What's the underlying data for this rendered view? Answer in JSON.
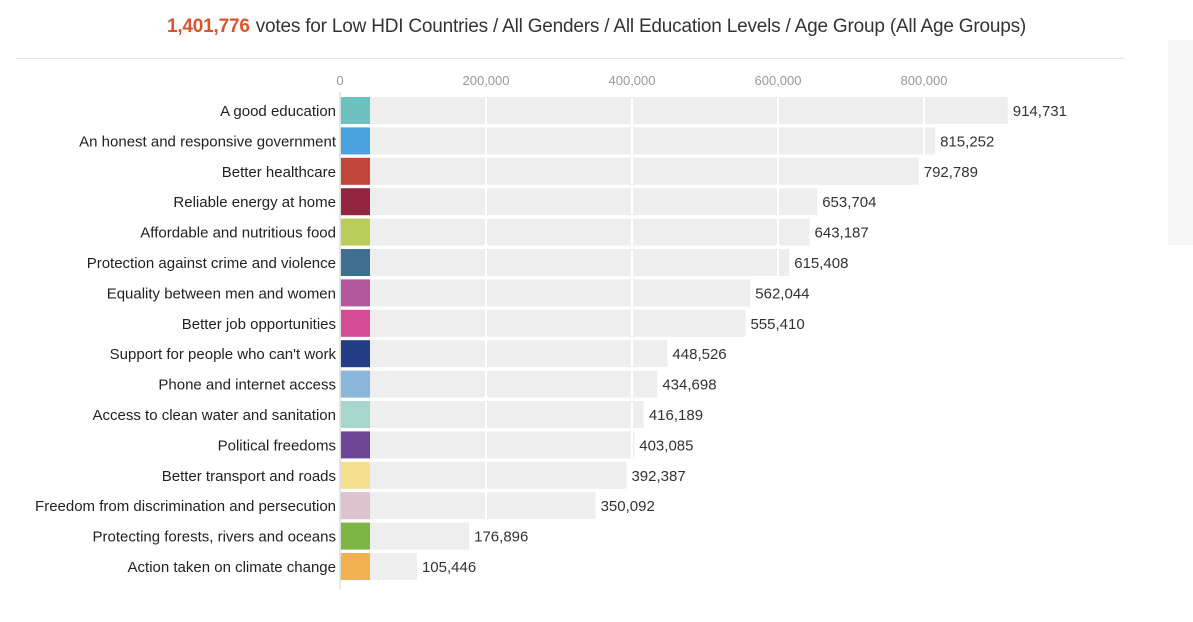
{
  "header": {
    "total_votes": "1,401,776",
    "subtitle": "votes for Low HDI Countries / All Genders / All Education Levels / Age Group (All Age Groups)"
  },
  "chart_data": {
    "type": "bar",
    "orientation": "horizontal",
    "title": "1,401,776 votes for Low HDI Countries / All Genders / All Education Levels / Age Group (All Age Groups)",
    "xlabel": "",
    "ylabel": "",
    "xlim": [
      0,
      1000000
    ],
    "ticks": [
      {
        "value": 0,
        "label": "0"
      },
      {
        "value": 200000,
        "label": "200,000"
      },
      {
        "value": 400000,
        "label": "400,000"
      },
      {
        "value": 600000,
        "label": "600,000"
      },
      {
        "value": 800000,
        "label": "800,000"
      }
    ],
    "grid": true,
    "categories": [
      "A good education",
      "An honest and responsive government",
      "Better healthcare",
      "Reliable energy at home",
      "Affordable and nutritious food",
      "Protection against crime and violence",
      "Equality between men and women",
      "Better job opportunities",
      "Support for people who can't work",
      "Phone and internet access",
      "Access to clean water and sanitation",
      "Political freedoms",
      "Better transport and roads",
      "Freedom from discrimination and persecution",
      "Protecting forests, rivers and oceans",
      "Action taken on climate change"
    ],
    "values": [
      914731,
      815252,
      792789,
      653704,
      643187,
      615408,
      562044,
      555410,
      448526,
      434698,
      416189,
      403085,
      392387,
      350092,
      176896,
      105446
    ],
    "value_labels": [
      "914,731",
      "815,252",
      "792,789",
      "653,704",
      "643,187",
      "615,408",
      "562,044",
      "555,410",
      "448,526",
      "434,698",
      "416,189",
      "403,085",
      "392,387",
      "350,092",
      "176,896",
      "105,446"
    ],
    "swatch_colors": [
      "#6cc0c0",
      "#4aa3df",
      "#c2473a",
      "#93263f",
      "#b8cd5a",
      "#3f6f90",
      "#b3589d",
      "#d64b96",
      "#243e85",
      "#8ab6dc",
      "#a7d6cc",
      "#6e4597",
      "#f6e08f",
      "#dcc3cf",
      "#7eb646",
      "#f1b151"
    ],
    "bar_color": "#eeeeee"
  }
}
